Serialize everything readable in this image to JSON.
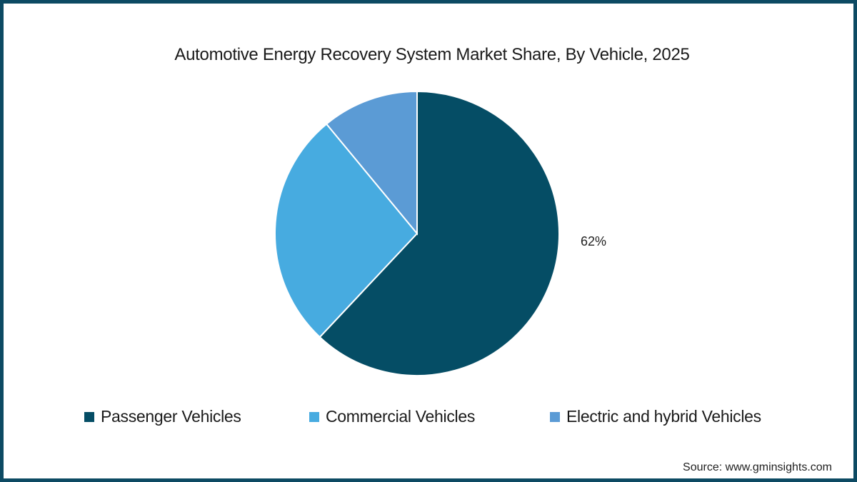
{
  "chart_data": {
    "type": "pie",
    "title": "Automotive Energy Recovery System Market Share, By Vehicle, 2025",
    "categories": [
      "Passenger Vehicles",
      "Commercial Vehicles",
      "Electric and hybrid Vehicles"
    ],
    "values": [
      62,
      27,
      11
    ],
    "colors": [
      "#054d65",
      "#47abe0",
      "#5b9bd5"
    ],
    "data_labels": [
      {
        "category": "Passenger Vehicles",
        "label": "62%"
      }
    ],
    "legend_position": "bottom",
    "start_angle": "12 o'clock, clockwise"
  },
  "title": "Automotive Energy Recovery System Market Share, By Vehicle, 2025",
  "label_passenger": "62%",
  "legend": [
    {
      "label": "Passenger Vehicles",
      "color": "#054d65"
    },
    {
      "label": "Commercial Vehicles",
      "color": "#47abe0"
    },
    {
      "label": "Electric and hybrid Vehicles",
      "color": "#5b9bd5"
    }
  ],
  "source": "Source: www.gminsights.com",
  "frame_color": "#0d4a63"
}
